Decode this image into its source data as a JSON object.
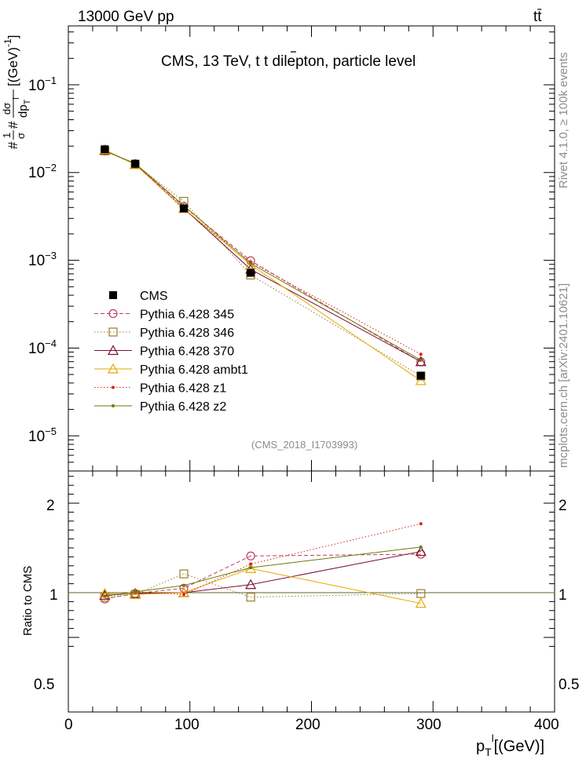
{
  "header": {
    "left": "13000 GeV pp",
    "right": "tt̄"
  },
  "side_labels": {
    "rivet": "Rivet 4.1.0, ≥ 100k events",
    "mcplots": "mcplots.cern.ch [arXiv:2401.10621]"
  },
  "chart_data": [
    {
      "type": "line",
      "title": "CMS, 13 TeV, t t̄ dilepton, particle level",
      "annotation": "(CMS_2018_I1703993)",
      "ylabel": "#frac{1}{σ}#frac{dσ}{dp_T^l} [(GeV)^{-1}]",
      "yscale": "log",
      "xlim": [
        0,
        400
      ],
      "ylim": [
        4e-06,
        0.5
      ],
      "y_tick_labels": [
        "10^{-5}",
        "10^{-4}",
        "10^{-3}",
        "10^{-2}",
        "10^{-1}"
      ],
      "x": [
        30,
        55,
        95,
        150,
        290
      ],
      "series": [
        {
          "name": "CMS",
          "values": [
            0.0184,
            0.0126,
            0.0039,
            0.00072,
            4.85e-05
          ],
          "color": "#000000",
          "marker": "square-filled",
          "line": "none"
        },
        {
          "name": "Pythia 6.428 345",
          "values": [
            0.0176,
            0.0126,
            0.0041,
            0.00099,
            6.95e-05
          ],
          "color": "#bf3f5f",
          "marker": "circle-open",
          "line": "dashed"
        },
        {
          "name": "Pythia 6.428 346",
          "values": [
            0.0177,
            0.0124,
            0.0047,
            0.00068,
            4.8e-05
          ],
          "color": "#9e7a2e",
          "marker": "square-open",
          "line": "dotted"
        },
        {
          "name": "Pythia 6.428 370",
          "values": [
            0.0179,
            0.0124,
            0.0039,
            0.00079,
            7e-05
          ],
          "color": "#7a0f33",
          "marker": "triangle-open",
          "line": "solid"
        },
        {
          "name": "Pythia 6.428 ambt1",
          "values": [
            0.0182,
            0.0123,
            0.0039,
            0.00089,
            4.25e-05
          ],
          "color": "#e6a800",
          "marker": "triangle-open",
          "line": "solid"
        },
        {
          "name": "Pythia 6.428 z1",
          "values": [
            0.0176,
            0.0127,
            0.0038,
            0.00095,
            8.5e-05
          ],
          "color": "#e02020",
          "marker": "dot",
          "line": "dotted"
        },
        {
          "name": "Pythia 6.428 z2",
          "values": [
            0.0176,
            0.0127,
            0.0042,
            0.00092,
            7.3e-05
          ],
          "color": "#6b7a0a",
          "marker": "dot",
          "line": "solid"
        }
      ]
    },
    {
      "type": "line",
      "ylabel": "Ratio to CMS",
      "xlabel": "p_T^l [(GeV)]",
      "xlim": [
        0,
        400
      ],
      "ylim": [
        0.35,
        2.3
      ],
      "x_tick_labels": [
        "0",
        "100",
        "200",
        "300",
        "400"
      ],
      "y_tick_labels": [
        "0.5",
        "1",
        "2"
      ],
      "x": [
        30,
        55,
        95,
        150,
        290
      ],
      "series": [
        {
          "name": "Pythia 6.428 345",
          "values": [
            0.93,
            0.99,
            1.05,
            1.41,
            1.43
          ]
        },
        {
          "name": "Pythia 6.428 346",
          "values": [
            0.95,
            0.98,
            1.21,
            0.95,
            0.99
          ]
        },
        {
          "name": "Pythia 6.428 370",
          "values": [
            0.97,
            0.99,
            1.0,
            1.09,
            1.46
          ]
        },
        {
          "name": "Pythia 6.428 ambt1",
          "values": [
            0.99,
            0.98,
            1.0,
            1.27,
            0.88
          ]
        },
        {
          "name": "Pythia 6.428 z1",
          "values": [
            0.96,
            1.01,
            0.98,
            1.32,
            1.77
          ]
        },
        {
          "name": "Pythia 6.428 z2",
          "values": [
            0.96,
            1.01,
            1.08,
            1.28,
            1.51
          ]
        }
      ]
    }
  ]
}
